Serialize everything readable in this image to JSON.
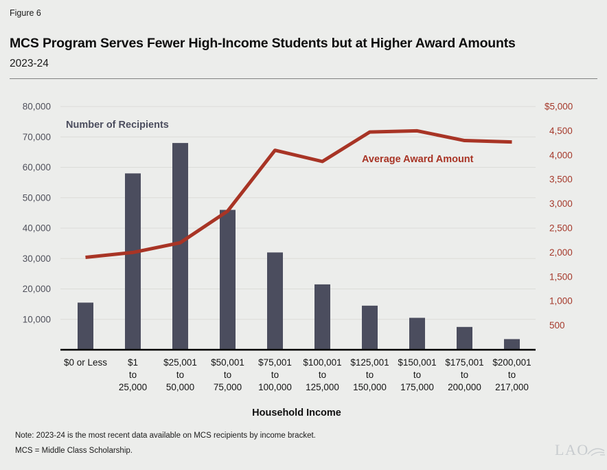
{
  "figure_label": "Figure 6",
  "title": "MCS Program Serves Fewer High-Income Students but at Higher Award Amounts",
  "subtitle": "2023-24",
  "notes": [
    "Note: 2023-24 is the most recent data available on MCS recipients by income bracket.",
    "MCS = Middle Class Scholarship."
  ],
  "logo_text": "LAO",
  "colors": {
    "background": "#ECEDEB",
    "bar": "#4B4D5E",
    "line": "#A83425",
    "left_tick": "#4F505B",
    "right_tick": "#A5392B",
    "gridline": "#DBDCD8",
    "baseline": "#000000"
  },
  "chart_data": {
    "type": "bar",
    "subtype": "combo-bar-line",
    "title": "MCS Program Serves Fewer High-Income Students but at Higher Award Amounts",
    "xlabel": "Household Income",
    "grid": "horizontal",
    "categories": [
      "$0 or Less",
      "$1 to 25,000",
      "$25,001 to 50,000",
      "$50,001 to 75,000",
      "$75,001 to 100,000",
      "$100,001 to 125,000",
      "$125,001 to 150,000",
      "$150,001 to 175,000",
      "$175,001 to 200,000",
      "$200,001 to 217,000"
    ],
    "category_display_lines": [
      [
        "$0 or Less"
      ],
      [
        "$1",
        "to",
        "25,000"
      ],
      [
        "$25,001",
        "to",
        "50,000"
      ],
      [
        "$50,001",
        "to",
        "75,000"
      ],
      [
        "$75,001",
        "to",
        "100,000"
      ],
      [
        "$100,001",
        "to",
        "125,000"
      ],
      [
        "$125,001",
        "to",
        "150,000"
      ],
      [
        "$150,001",
        "to",
        "175,000"
      ],
      [
        "$175,001",
        "to",
        "200,000"
      ],
      [
        "$200,001",
        "to",
        "217,000"
      ]
    ],
    "series": [
      {
        "name": "Number of Recipients",
        "type": "bar",
        "axis": "left",
        "color": "#4B4D5E",
        "values": [
          15500,
          58000,
          68000,
          46000,
          32000,
          21500,
          14500,
          10500,
          7500,
          3500
        ]
      },
      {
        "name": "Average Award Amount",
        "type": "line",
        "axis": "right",
        "color": "#A83425",
        "values": [
          1900,
          2000,
          2200,
          2850,
          4100,
          3870,
          4475,
          4500,
          4300,
          4270
        ]
      }
    ],
    "left_axis": {
      "min": 0,
      "max": 80000,
      "tick_step": 10000,
      "tick_labels": [
        "10,000",
        "20,000",
        "30,000",
        "40,000",
        "50,000",
        "60,000",
        "70,000",
        "80,000"
      ]
    },
    "right_axis": {
      "min": 0,
      "max": 5000,
      "tick_step": 500,
      "tick_labels": [
        "500",
        "1,000",
        "1,500",
        "2,000",
        "2,500",
        "3,000",
        "3,500",
        "4,000",
        "4,500",
        "$5,000"
      ]
    }
  }
}
